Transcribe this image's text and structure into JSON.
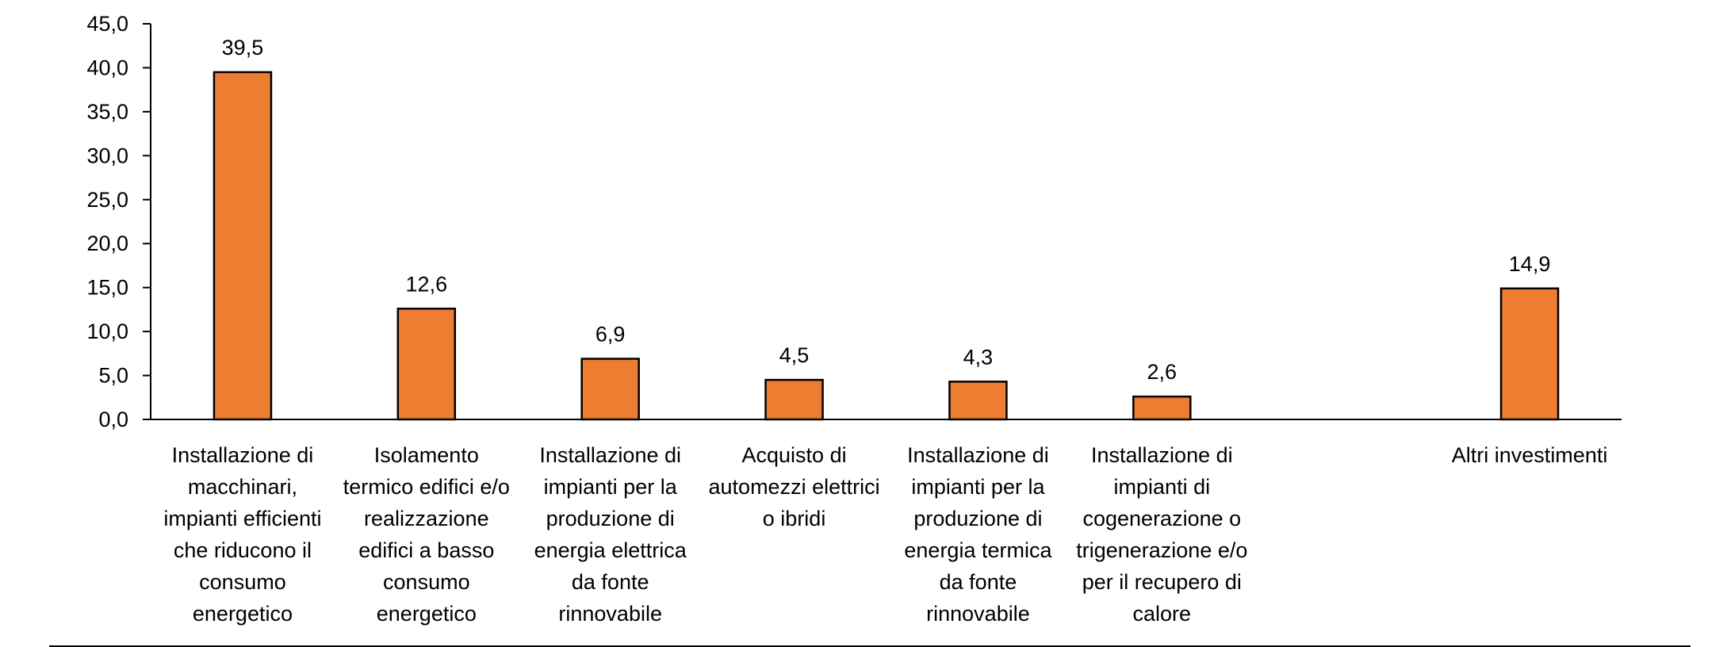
{
  "chart_data": {
    "type": "bar",
    "title": "",
    "xlabel": "",
    "ylabel": "",
    "ylim": [
      0,
      45
    ],
    "yticks": [
      "0,0",
      "5,0",
      "10,0",
      "15,0",
      "20,0",
      "25,0",
      "30,0",
      "35,0",
      "40,0",
      "45,0"
    ],
    "grid": false,
    "bar_color": "#ED7D31",
    "categories": [
      [
        "Installazione di",
        "macchinari,",
        "impianti efficienti",
        "che riducono il",
        "consumo",
        "energetico"
      ],
      [
        "Isolamento",
        "termico edifici e/o",
        "realizzazione",
        "edifici a basso",
        "consumo",
        "energetico"
      ],
      [
        "Installazione di",
        "impianti per la",
        "produzione di",
        "energia elettrica",
        "da fonte",
        "rinnovabile"
      ],
      [
        "Acquisto di",
        "automezzi elettrici",
        "o ibridi"
      ],
      [
        "Installazione di",
        "impianti per la",
        "produzione di",
        "energia termica",
        "da fonte",
        "rinnovabile"
      ],
      [
        "Installazione di",
        "impianti di",
        "cogenerazione o",
        "trigenerazione e/o",
        "per il recupero di",
        "calore"
      ],
      [],
      [
        "Altri investimenti"
      ]
    ],
    "values": [
      39.5,
      12.6,
      6.9,
      4.5,
      4.3,
      2.6,
      null,
      14.9
    ],
    "data_labels": [
      "39,5",
      "12,6",
      "6,9",
      "4,5",
      "4,3",
      "2,6",
      "",
      "14,9"
    ]
  }
}
